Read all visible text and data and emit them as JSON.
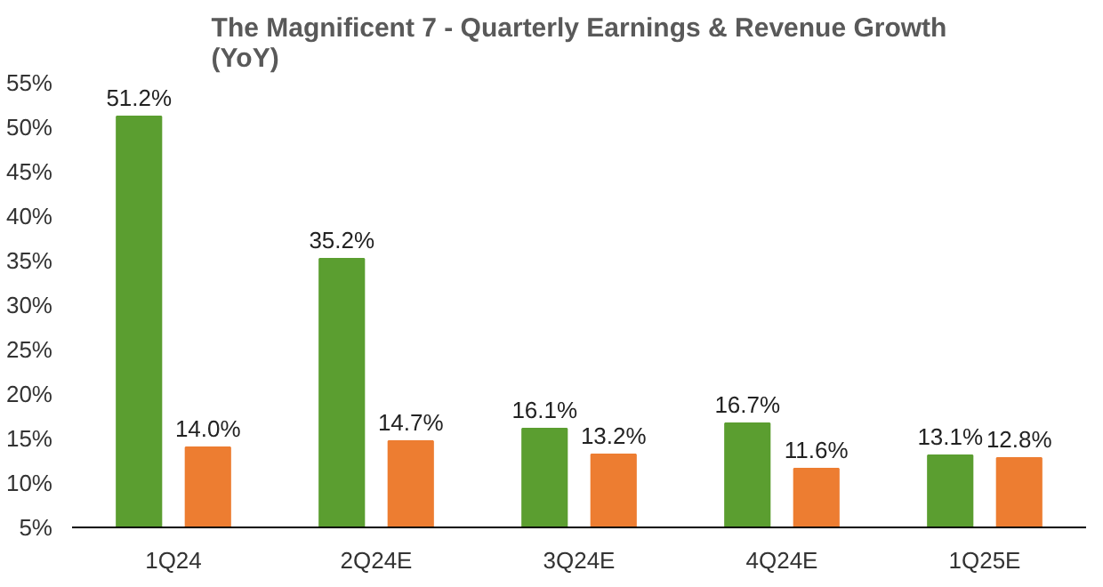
{
  "chart_data": {
    "type": "bar",
    "title": "The Magnificent 7 - Quarterly Earnings & Revenue Growth (YoY)",
    "categories": [
      "1Q24",
      "2Q24E",
      "3Q24E",
      "4Q24E",
      "1Q25E"
    ],
    "series": [
      {
        "color": "#5b9e30",
        "values": [
          51.2,
          35.2,
          16.1,
          16.7,
          13.1
        ],
        "value_labels": [
          "51.2%",
          "35.2%",
          "16.1%",
          "16.7%",
          "13.1%"
        ]
      },
      {
        "color": "#ed7d31",
        "values": [
          14.0,
          14.7,
          13.2,
          11.6,
          12.8
        ],
        "value_labels": [
          "14.0%",
          "14.7%",
          "13.2%",
          "11.6%",
          "12.8%"
        ]
      }
    ],
    "ylim": [
      5,
      55
    ],
    "yticks": [
      {
        "value": 5,
        "label": "5%"
      },
      {
        "value": 10,
        "label": "10%"
      },
      {
        "value": 15,
        "label": "15%"
      },
      {
        "value": 20,
        "label": "20%"
      },
      {
        "value": 25,
        "label": "25%"
      },
      {
        "value": 30,
        "label": "30%"
      },
      {
        "value": 35,
        "label": "35%"
      },
      {
        "value": 40,
        "label": "40%"
      },
      {
        "value": 45,
        "label": "45%"
      },
      {
        "value": 50,
        "label": "50%"
      },
      {
        "value": 55,
        "label": "55%"
      }
    ],
    "grid": false
  }
}
